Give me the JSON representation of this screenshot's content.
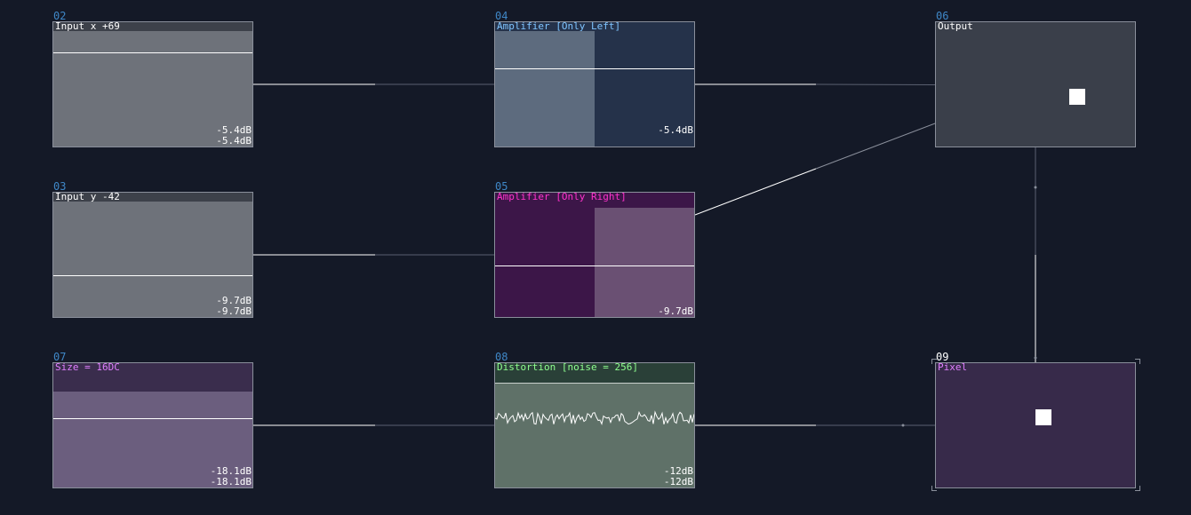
{
  "nodes": {
    "n02": {
      "id": "02",
      "title": "Input x +69",
      "db_top": "-5.4dB",
      "db_bottom": "-5.4dB"
    },
    "n03": {
      "id": "03",
      "title": "Input y -42",
      "db_top": "-9.7dB",
      "db_bottom": "-9.7dB"
    },
    "n07": {
      "id": "07",
      "title": "Size = 16DC",
      "db_top": "-18.1dB",
      "db_bottom": "-18.1dB"
    },
    "n04": {
      "id": "04",
      "title": "Amplifier [Only Left]",
      "db": "-5.4dB"
    },
    "n05": {
      "id": "05",
      "title": "Amplifier [Only Right]",
      "db": "-9.7dB"
    },
    "n08": {
      "id": "08",
      "title": "Distortion [noise = 256]",
      "db_top": "-12dB",
      "db_bottom": "-12dB"
    },
    "n06": {
      "id": "06",
      "title": "Output"
    },
    "n09": {
      "id": "09",
      "title": "Pixel"
    }
  },
  "colors": {
    "background": "#141927",
    "node_id": "#3f87c7",
    "amp_left_title": "#7fc4ff",
    "amp_right_title": "#ff33cc",
    "distortion_title": "#8fff8f",
    "purple_title": "#e07fff"
  }
}
